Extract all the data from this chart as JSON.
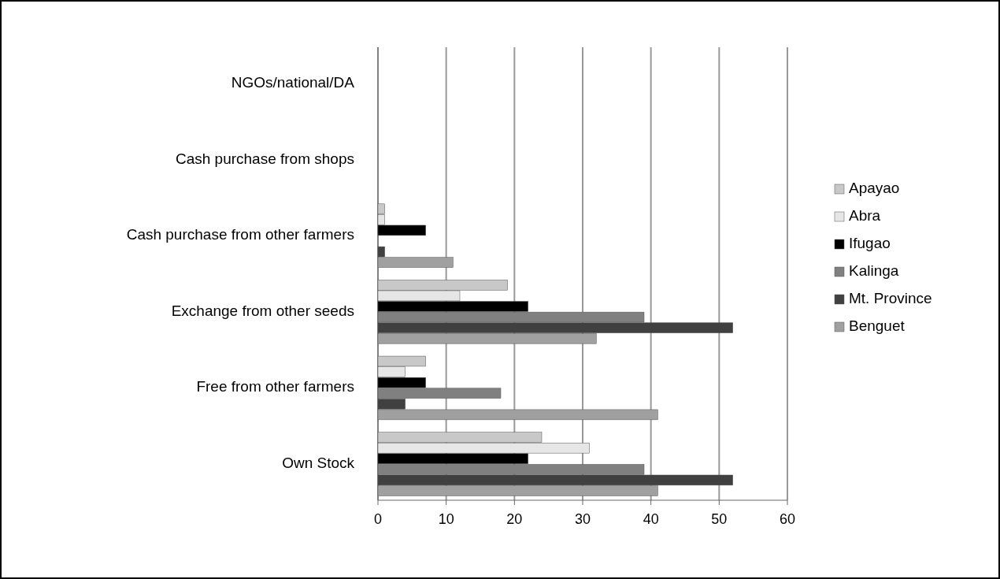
{
  "chart_data": {
    "type": "bar",
    "orientation": "horizontal",
    "categories": [
      "NGOs/national/DA",
      "Cash purchase from shops",
      "Cash purchase from other farmers",
      "Exchange from other seeds",
      "Free from other farmers",
      "Own Stock"
    ],
    "series": [
      {
        "name": "Apayao",
        "color": "#c8c8c8",
        "values": [
          0,
          0,
          1,
          19,
          7,
          24
        ]
      },
      {
        "name": "Abra",
        "color": "#e6e6e6",
        "values": [
          0,
          0,
          1,
          12,
          4,
          31
        ]
      },
      {
        "name": "Ifugao",
        "color": "#000000",
        "values": [
          0,
          0,
          7,
          22,
          7,
          22
        ]
      },
      {
        "name": "Kalinga",
        "color": "#808080",
        "values": [
          0,
          0,
          0,
          39,
          18,
          39
        ]
      },
      {
        "name": "Mt. Province",
        "color": "#404040",
        "values": [
          0,
          0,
          1,
          52,
          4,
          52
        ]
      },
      {
        "name": "Benguet",
        "color": "#a0a0a0",
        "values": [
          0,
          0,
          11,
          32,
          41,
          41
        ]
      }
    ],
    "xlim": [
      0,
      60
    ],
    "xticks": [
      0,
      10,
      20,
      30,
      40,
      50,
      60
    ],
    "grid": "x",
    "legend": "right"
  }
}
